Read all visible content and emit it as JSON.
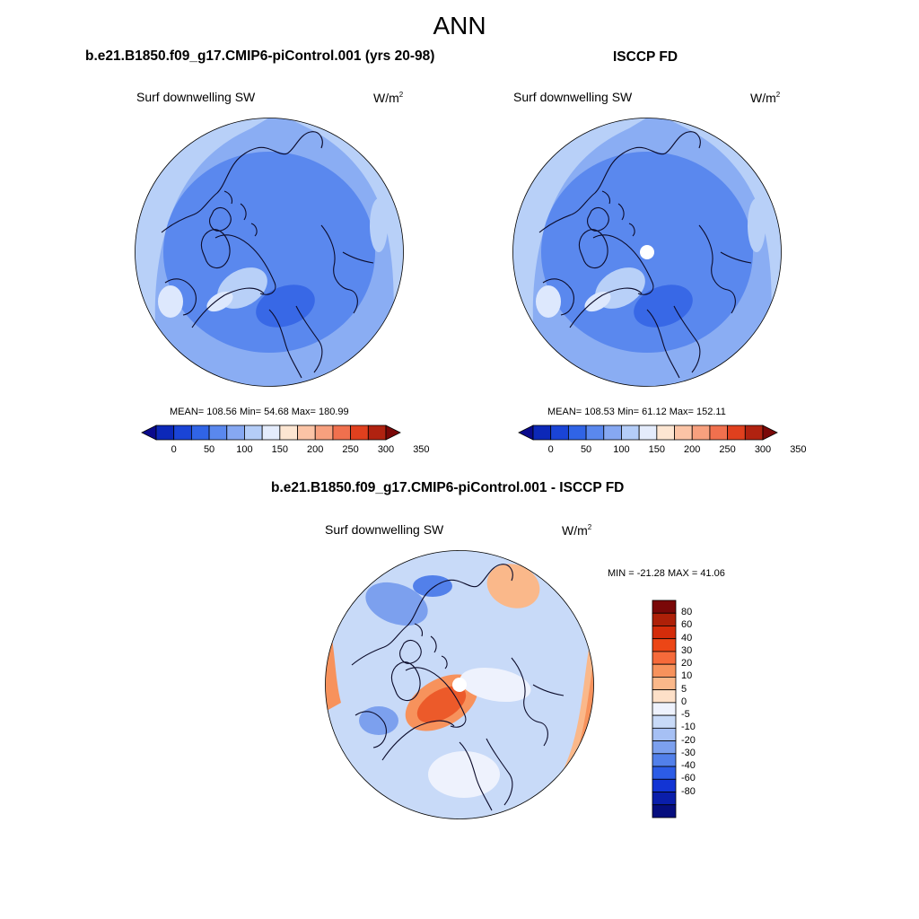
{
  "page_title": "ANN",
  "panels": [
    {
      "title": "b.e21.B1850.f09_g17.CMIP6-piControl.001 (yrs 20-98)",
      "variable": "Surf downwelling SW",
      "units_base": "W/m",
      "units_exp": "2",
      "stats": "MEAN= 108.56  Min=  54.68  Max= 180.99",
      "pole_hole": false
    },
    {
      "title": "ISCCP FD",
      "variable": "Surf downwelling SW",
      "units_base": "W/m",
      "units_exp": "2",
      "stats": "MEAN= 108.53  Min=  61.12  Max= 152.11",
      "pole_hole": true
    }
  ],
  "diff_panel": {
    "title": "b.e21.B1850.f09_g17.CMIP6-piControl.001 - ISCCP FD",
    "variable": "Surf downwelling SW",
    "units_base": "W/m",
    "units_exp": "2",
    "stats": "MIN = -21.28 MAX =  41.06"
  },
  "colorbar_abs": {
    "colors": [
      "#0a0a8c",
      "#0c28b8",
      "#1a44d6",
      "#3064e6",
      "#5a88ee",
      "#86a8f2",
      "#b4cdf8",
      "#e4ecfc",
      "#fde6d2",
      "#fbc4a6",
      "#f7a07e",
      "#f0704e",
      "#e0401e",
      "#b02210",
      "#7a0808"
    ],
    "tick_labels": [
      "0",
      "50",
      "100",
      "150",
      "200",
      "250",
      "300",
      "350"
    ]
  },
  "colorbar_diff": {
    "colors": [
      "#7a0808",
      "#ae2008",
      "#d42c0a",
      "#ec4616",
      "#f66a3a",
      "#f7925c",
      "#fab88a",
      "#fde0c8",
      "#eef2fd",
      "#c8daf8",
      "#a6c0f4",
      "#7ca0ee",
      "#5280ea",
      "#2c5ce6",
      "#1234d4",
      "#0a1eaa",
      "#060e7e"
    ],
    "tick_labels": [
      "80",
      "60",
      "40",
      "30",
      "20",
      "10",
      "5",
      "0",
      "-5",
      "-10",
      "-20",
      "-30",
      "-40",
      "-60",
      "-80"
    ]
  },
  "map_colors": {
    "base_abs": "#8aadf3",
    "mid_abs": "#5a88ee",
    "dark_abs": "#3868e6",
    "light_abs": "#b8d0f8",
    "pale_abs": "#dde8fd",
    "base_diff": "#c8daf8",
    "pale_diff": "#eef2fd",
    "blue_diff": "#7ca0ee",
    "warm1_diff": "#fab88a",
    "warm2_diff": "#f7925c",
    "warm3_diff": "#ec5a2a",
    "coast": "#0b0b2a"
  }
}
